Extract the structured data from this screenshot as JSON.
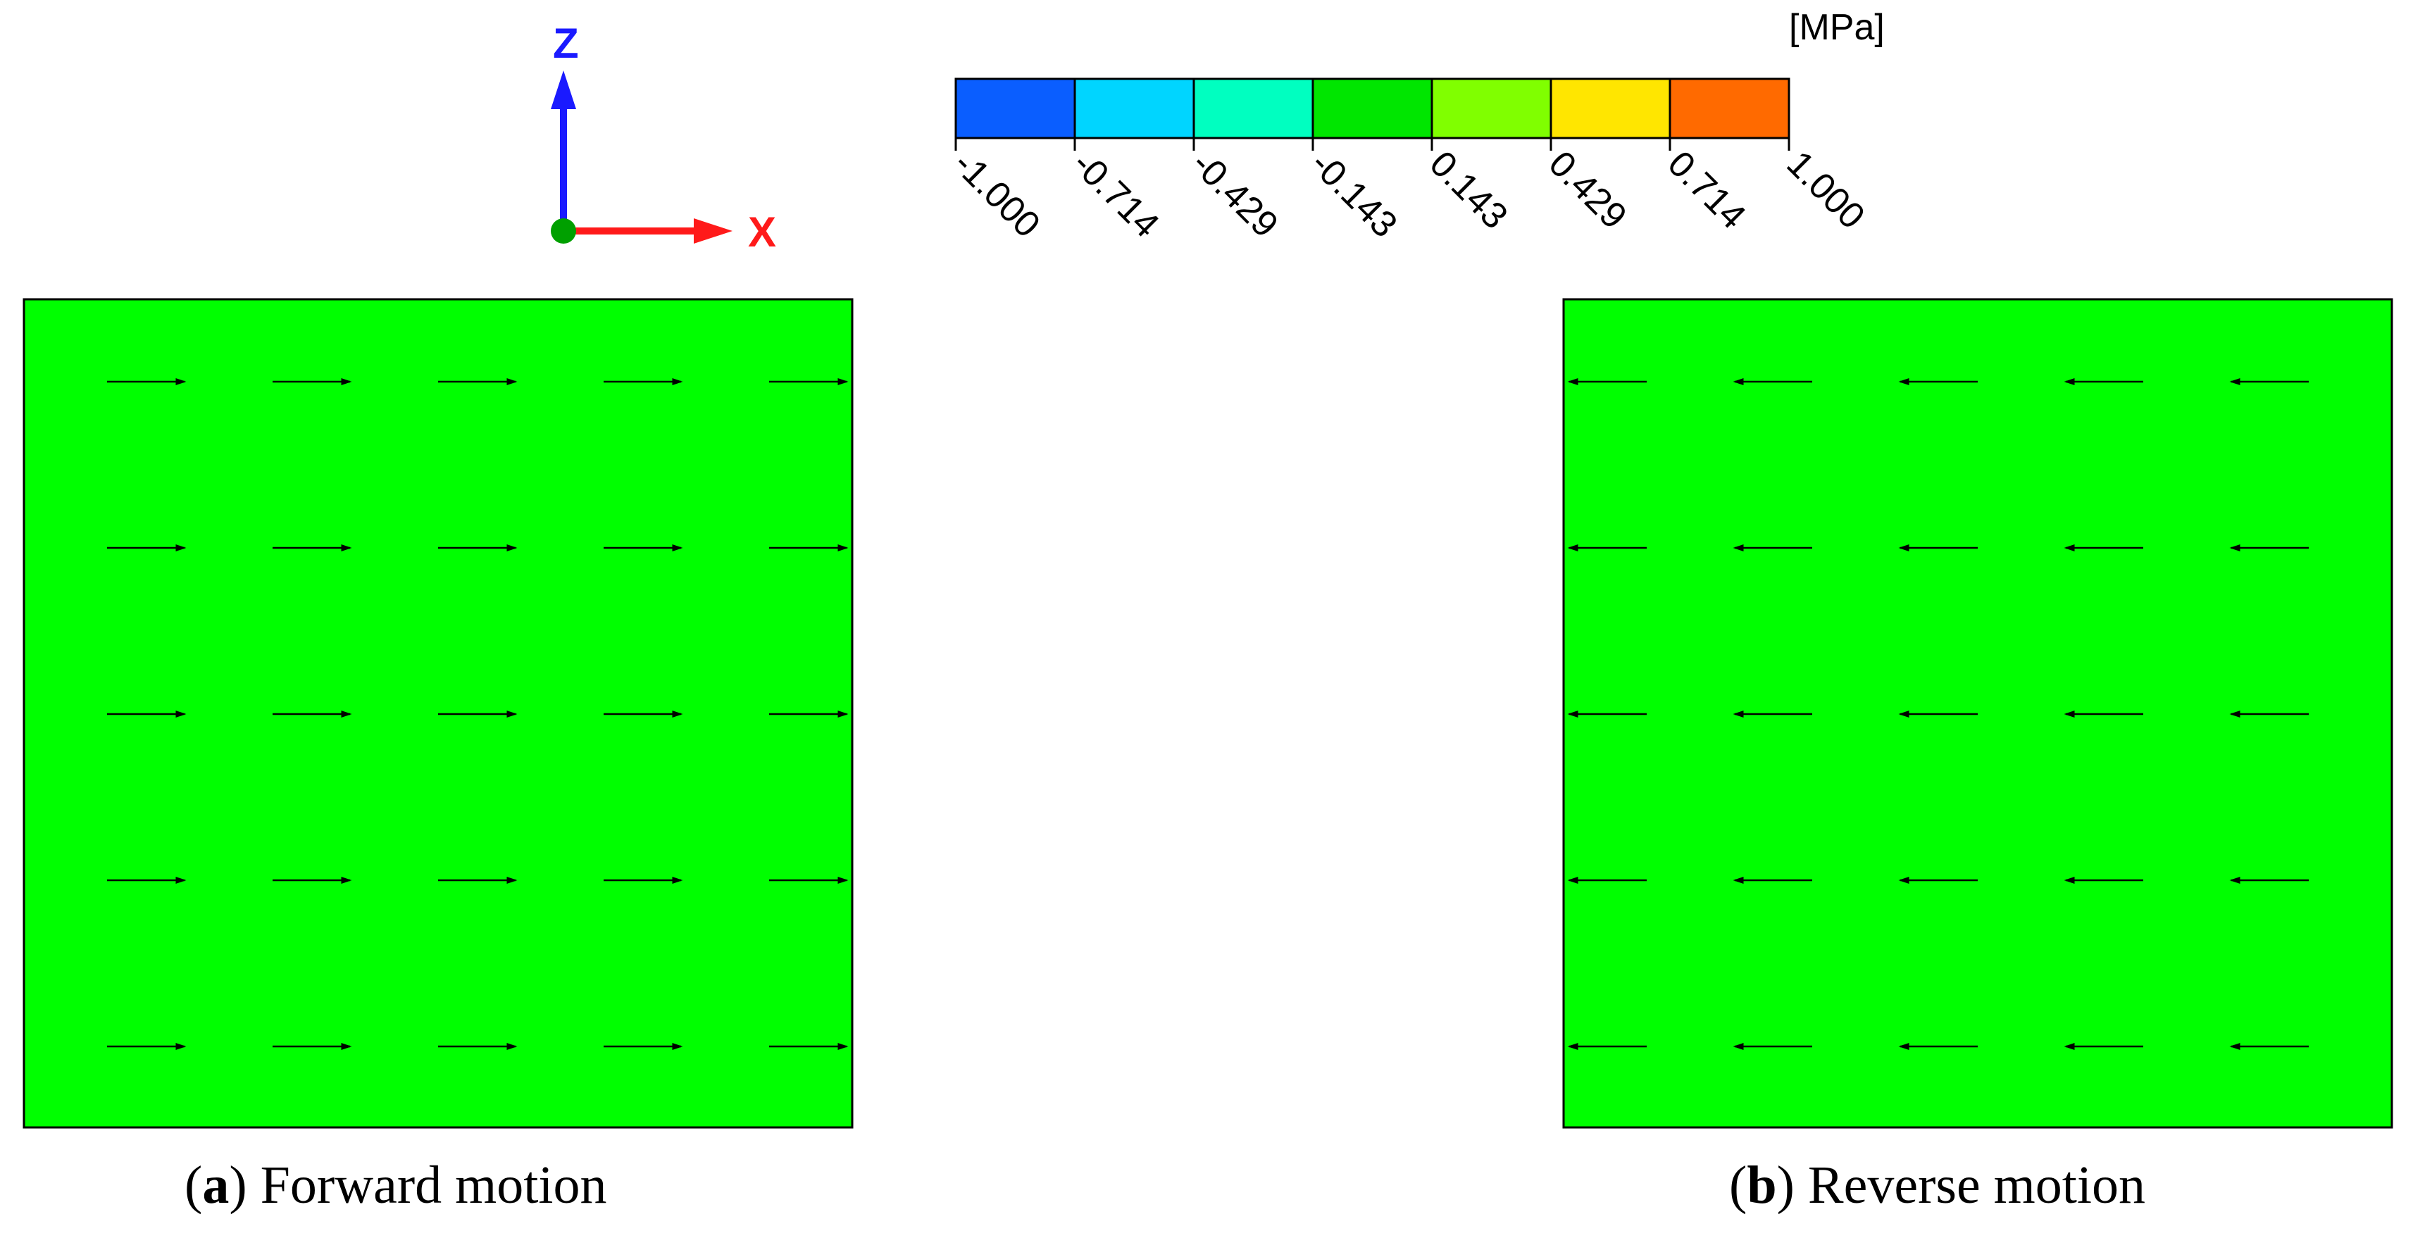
{
  "colorbar": {
    "unit": "[MPa]",
    "colors": [
      "#0a5eff",
      "#00d5ff",
      "#00ffc0",
      "#00e600",
      "#80ff00",
      "#ffe600",
      "#ff6a00"
    ],
    "ticks": [
      "-1.000",
      "-0.714",
      "-0.429",
      "-0.143",
      "0.143",
      "0.429",
      "0.714",
      "1.000"
    ]
  },
  "triad": {
    "z_label": "Z",
    "x_label": "X",
    "z_color": "#1a1aff",
    "x_color": "#ff1a1a",
    "y_color": "#00a000"
  },
  "panels": [
    {
      "id": "a",
      "letter": "a",
      "title": "Forward motion",
      "fill": "#00ff00",
      "arrow_direction": "right",
      "arrow_rows": 5,
      "arrow_cols": 5
    },
    {
      "id": "b",
      "letter": "b",
      "title": "Reverse motion",
      "fill": "#00ff00",
      "arrow_direction": "left",
      "arrow_rows": 5,
      "arrow_cols": 5
    }
  ]
}
